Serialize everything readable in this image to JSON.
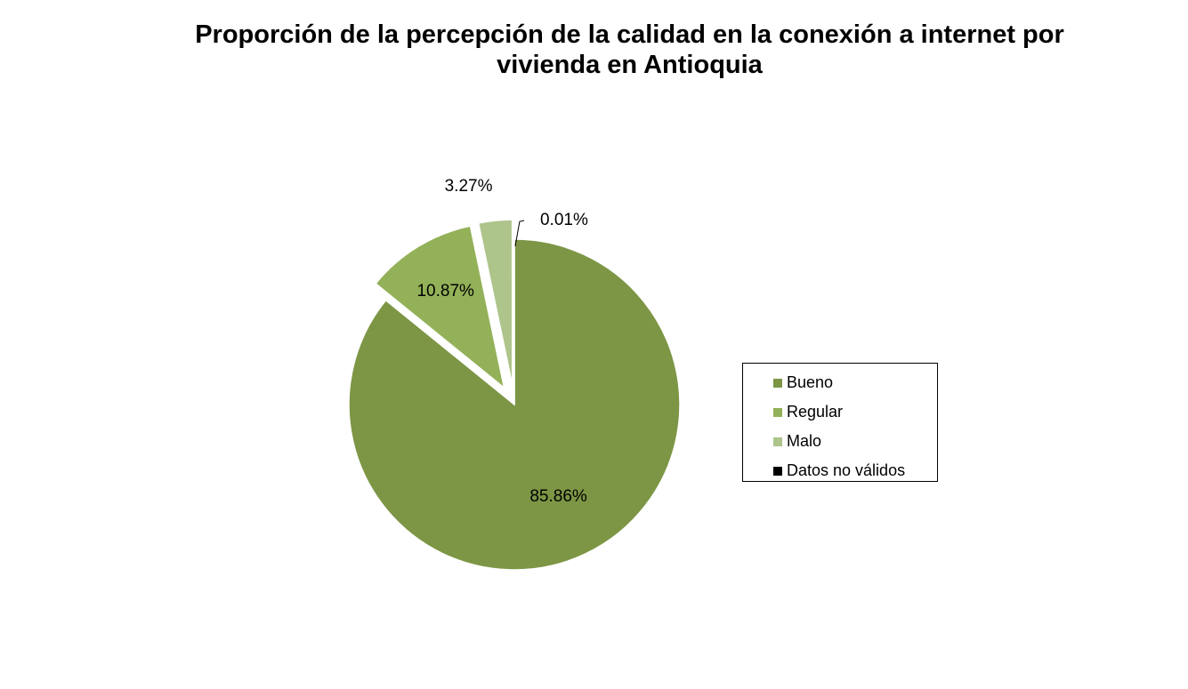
{
  "chart_data": {
    "type": "pie",
    "title": "Proporción de la percepción de la calidad en la conexión a internet por\nvivienda en Antioquia",
    "categories": [
      "Bueno",
      "Regular",
      "Malo",
      "Datos no válidos"
    ],
    "values": [
      85.86,
      10.87,
      3.27,
      0.01
    ],
    "data_labels": [
      "85.86%",
      "10.87%",
      "3.27%",
      "0.01%"
    ],
    "colors": [
      "#7d9645",
      "#93b158",
      "#adc48a",
      "#000000"
    ],
    "exploded": [
      "Regular",
      "Malo"
    ],
    "legend_placement": "right"
  }
}
